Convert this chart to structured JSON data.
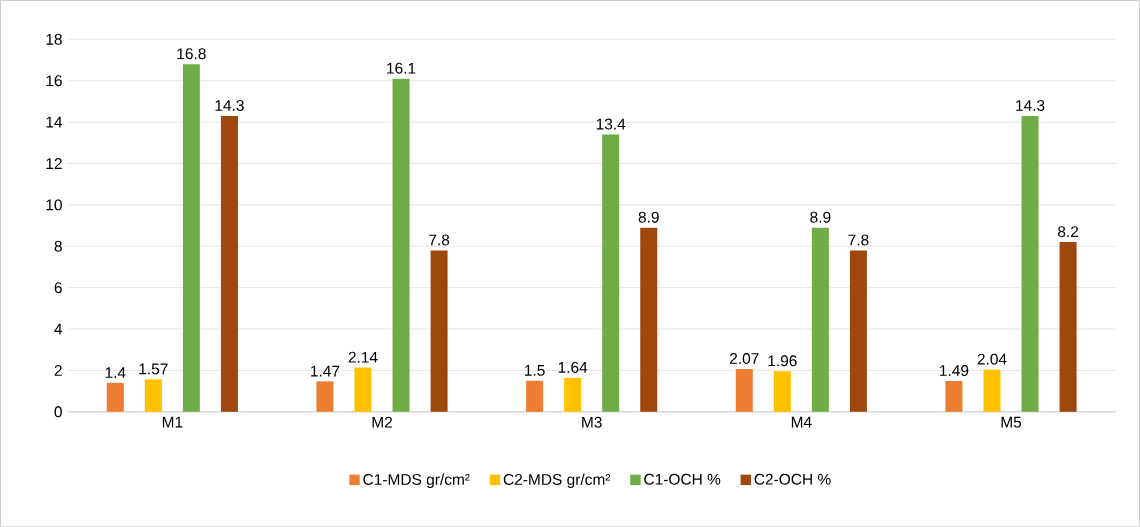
{
  "chart_data": {
    "type": "bar",
    "categories": [
      "M1",
      "M2",
      "M3",
      "M4",
      "M5"
    ],
    "series": [
      {
        "name": "C1-MDS gr/cm²",
        "color": "#ed7d31",
        "values": [
          1.4,
          1.47,
          1.5,
          2.07,
          1.49
        ]
      },
      {
        "name": "C2-MDS gr/cm²",
        "color": "#ffc000",
        "values": [
          1.57,
          2.14,
          1.64,
          1.96,
          2.04
        ]
      },
      {
        "name": "C1-OCH %",
        "color": "#70ad47",
        "values": [
          16.8,
          16.1,
          13.4,
          8.9,
          14.3
        ]
      },
      {
        "name": "C2-OCH %",
        "color": "#9e480e",
        "values": [
          14.3,
          7.8,
          8.9,
          7.8,
          8.2
        ]
      }
    ],
    "ylim": [
      0,
      18
    ],
    "yticks": [
      0,
      2,
      4,
      6,
      8,
      10,
      12,
      14,
      16,
      18
    ],
    "grid": "y",
    "legend": "bottom",
    "data_labels": true
  }
}
